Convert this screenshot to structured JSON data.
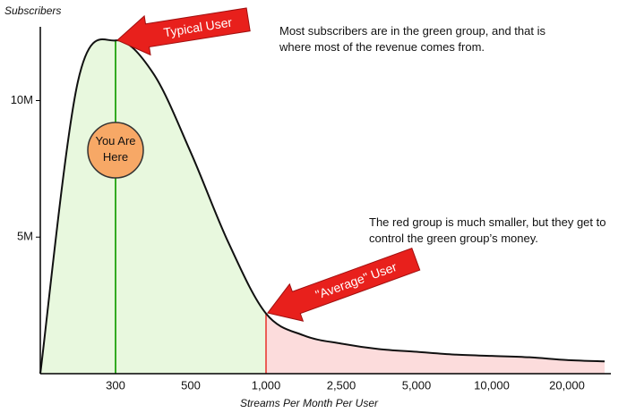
{
  "chart_data": {
    "type": "area",
    "y_axis_label": "Subscribers",
    "x_axis_label": "Streams Per Month Per User",
    "categories": [
      null,
      null,
      "300",
      null,
      "500",
      null,
      "1,000",
      null,
      "2,500",
      null,
      "5,000",
      null,
      "10,000",
      null,
      "20,000",
      null
    ],
    "values": [
      0,
      10700000,
      12200000,
      11000000,
      8100000,
      4800000,
      2200000,
      1400000,
      1100000,
      900000,
      800000,
      700000,
      650000,
      600000,
      500000,
      450000
    ],
    "ylim": [
      0,
      12700000
    ],
    "yticks": [
      {
        "value": 5000000,
        "label": "5M"
      },
      {
        "value": 10000000,
        "label": "10M"
      }
    ],
    "left_color": "#e8f8de",
    "right_color": "#fcdcdc",
    "left_line_color": "#33aa22",
    "right_line_color": "#e8302a",
    "annotations": [
      {
        "text": "Typical User",
        "category": "300"
      },
      {
        "text": "\"Average\" User",
        "category": "1,000"
      }
    ],
    "marker_label": "You Are Here",
    "notes": [
      "Most subscribers are in the green group, and that is where most of the revenue comes from.",
      "The red group is much smaller, but they get to control the green group’s money."
    ]
  }
}
